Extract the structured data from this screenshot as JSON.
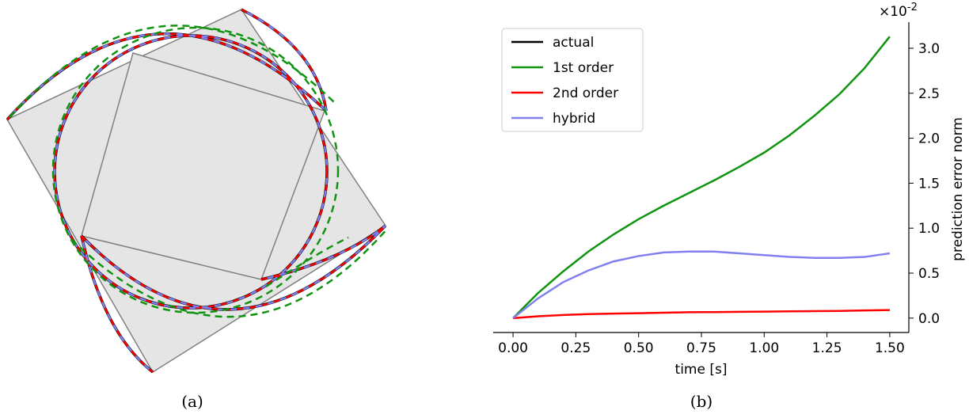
{
  "figure": {
    "captions": [
      "(a)",
      "(b)"
    ]
  },
  "chart_data": {
    "type": "line",
    "xlabel": "time [s]",
    "ylabel": "prediction error norm",
    "y_offset_base": "×10",
    "y_offset_exp": "-2",
    "x": [
      0,
      0.1,
      0.2,
      0.3,
      0.4,
      0.5,
      0.6,
      0.7,
      0.8,
      0.9,
      1.0,
      1.1,
      1.2,
      1.3,
      1.4,
      1.5
    ],
    "series": [
      {
        "name": "actual",
        "color": "#000000"
      },
      {
        "name": "1st order",
        "color": "#109410",
        "values": [
          0,
          0.28,
          0.52,
          0.74,
          0.93,
          1.1,
          1.25,
          1.39,
          1.53,
          1.68,
          1.84,
          2.03,
          2.25,
          2.49,
          2.78,
          3.13
        ]
      },
      {
        "name": "2nd order",
        "color": "#ff0000",
        "values": [
          0,
          0.02,
          0.035,
          0.045,
          0.05,
          0.055,
          0.06,
          0.065,
          0.067,
          0.07,
          0.072,
          0.075,
          0.078,
          0.08,
          0.085,
          0.09
        ]
      },
      {
        "name": "hybrid",
        "color": "#8080f0",
        "values": [
          0,
          0.22,
          0.4,
          0.53,
          0.63,
          0.69,
          0.73,
          0.74,
          0.74,
          0.72,
          0.7,
          0.68,
          0.67,
          0.67,
          0.68,
          0.72
        ]
      }
    ],
    "xlim": [
      -0.079,
      1.576
    ],
    "ylim": [
      -0.16,
      3.29
    ],
    "xticks": [
      {
        "value": 0,
        "label": "0.00"
      },
      {
        "value": 0.25,
        "label": "0.25"
      },
      {
        "value": 0.5,
        "label": "0.50"
      },
      {
        "value": 0.75,
        "label": "0.75"
      },
      {
        "value": 1.0,
        "label": "1.00"
      },
      {
        "value": 1.25,
        "label": "1.25"
      },
      {
        "value": 1.5,
        "label": "1.50"
      }
    ],
    "yticks": [
      {
        "value": 0,
        "label": "0.0"
      },
      0.5,
      {
        "value": 1.0,
        "label": "1.0"
      },
      1.5,
      {
        "value": 2.0,
        "label": "2.0"
      },
      2.5,
      {
        "value": 3.0,
        "label": "3.0"
      }
    ],
    "legend": "upper left",
    "y_axis_side": "right"
  }
}
